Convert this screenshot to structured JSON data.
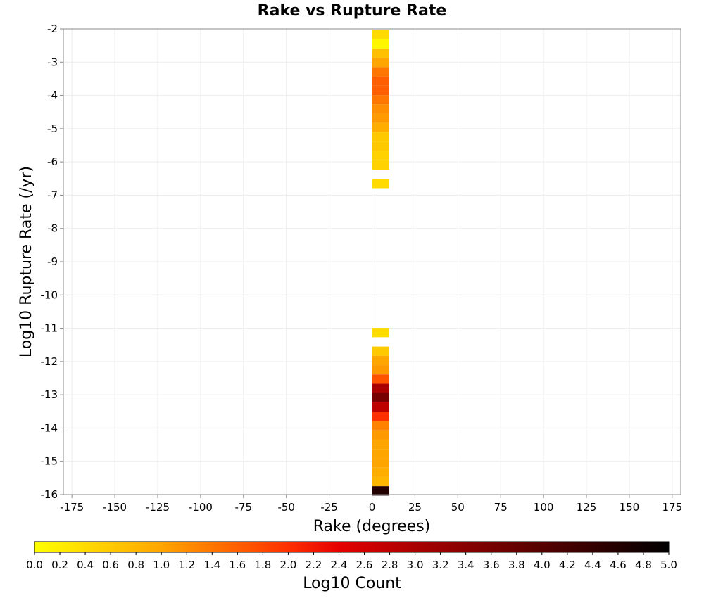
{
  "chart_data": {
    "type": "heatmap",
    "title": "Rake vs Rupture Rate",
    "xlabel": "Rake (degrees)",
    "ylabel": "Log10 Rupture Rate (/yr)",
    "xlim": [
      -180,
      180
    ],
    "ylim": [
      -16,
      -2
    ],
    "x_ticks": [
      -175,
      -150,
      -125,
      -100,
      -75,
      -50,
      -25,
      0,
      25,
      50,
      75,
      100,
      125,
      150,
      175
    ],
    "y_ticks": [
      -2,
      -3,
      -4,
      -5,
      -6,
      -7,
      -8,
      -9,
      -10,
      -11,
      -12,
      -13,
      -14,
      -15,
      -16
    ],
    "grid": true,
    "bin_width": 10,
    "bin_height": 0.28,
    "cells": [
      {
        "x": 0,
        "y": -2.17,
        "z": 0.4
      },
      {
        "x": 0,
        "y": -2.45,
        "z": 0.1
      },
      {
        "x": 0,
        "y": -2.73,
        "z": 0.7
      },
      {
        "x": 0,
        "y": -3.01,
        "z": 1.0
      },
      {
        "x": 0,
        "y": -3.29,
        "z": 1.4
      },
      {
        "x": 0,
        "y": -3.57,
        "z": 1.6
      },
      {
        "x": 0,
        "y": -3.85,
        "z": 1.6
      },
      {
        "x": 0,
        "y": -4.13,
        "z": 1.4
      },
      {
        "x": 0,
        "y": -4.41,
        "z": 1.2
      },
      {
        "x": 0,
        "y": -4.69,
        "z": 1.1
      },
      {
        "x": 0,
        "y": -4.97,
        "z": 0.9
      },
      {
        "x": 0,
        "y": -5.25,
        "z": 0.6
      },
      {
        "x": 0,
        "y": -5.53,
        "z": 0.6
      },
      {
        "x": 0,
        "y": -5.81,
        "z": 0.5
      },
      {
        "x": 0,
        "y": -6.09,
        "z": 0.5
      },
      {
        "x": 0,
        "y": -6.65,
        "z": 0.4
      },
      {
        "x": 0,
        "y": -11.13,
        "z": 0.4
      },
      {
        "x": 0,
        "y": -11.69,
        "z": 0.6
      },
      {
        "x": 0,
        "y": -11.97,
        "z": 1.0
      },
      {
        "x": 0,
        "y": -12.25,
        "z": 1.1
      },
      {
        "x": 0,
        "y": -12.53,
        "z": 1.7
      },
      {
        "x": 0,
        "y": -12.81,
        "z": 3.0
      },
      {
        "x": 0,
        "y": -13.09,
        "z": 3.6
      },
      {
        "x": 0,
        "y": -13.37,
        "z": 2.8
      },
      {
        "x": 0,
        "y": -13.65,
        "z": 2.0
      },
      {
        "x": 0,
        "y": -13.93,
        "z": 1.3
      },
      {
        "x": 0,
        "y": -14.21,
        "z": 1.1
      },
      {
        "x": 0,
        "y": -14.49,
        "z": 1.0
      },
      {
        "x": 0,
        "y": -14.77,
        "z": 1.0
      },
      {
        "x": 0,
        "y": -15.05,
        "z": 1.0
      },
      {
        "x": 0,
        "y": -15.33,
        "z": 0.9
      },
      {
        "x": 0,
        "y": -15.61,
        "z": 0.8
      },
      {
        "x": 0,
        "y": -15.89,
        "z": 4.6
      }
    ],
    "colorbar": {
      "label": "Log10 Count",
      "range": [
        0,
        5
      ],
      "ticks": [
        "0.0",
        "0.2",
        "0.4",
        "0.6",
        "0.8",
        "1.0",
        "1.2",
        "1.4",
        "1.6",
        "1.8",
        "2.0",
        "2.2",
        "2.4",
        "2.6",
        "2.8",
        "3.0",
        "3.2",
        "3.4",
        "3.6",
        "3.8",
        "4.0",
        "4.2",
        "4.4",
        "4.6",
        "4.8",
        "5.0"
      ],
      "stops": [
        {
          "v": 0.0,
          "color": "#ffff00"
        },
        {
          "v": 1.0,
          "color": "#ffa500"
        },
        {
          "v": 2.0,
          "color": "#ff3000"
        },
        {
          "v": 2.4,
          "color": "#e60000"
        },
        {
          "v": 3.0,
          "color": "#aa0000"
        },
        {
          "v": 4.0,
          "color": "#550000"
        },
        {
          "v": 5.0,
          "color": "#000000"
        }
      ]
    }
  }
}
